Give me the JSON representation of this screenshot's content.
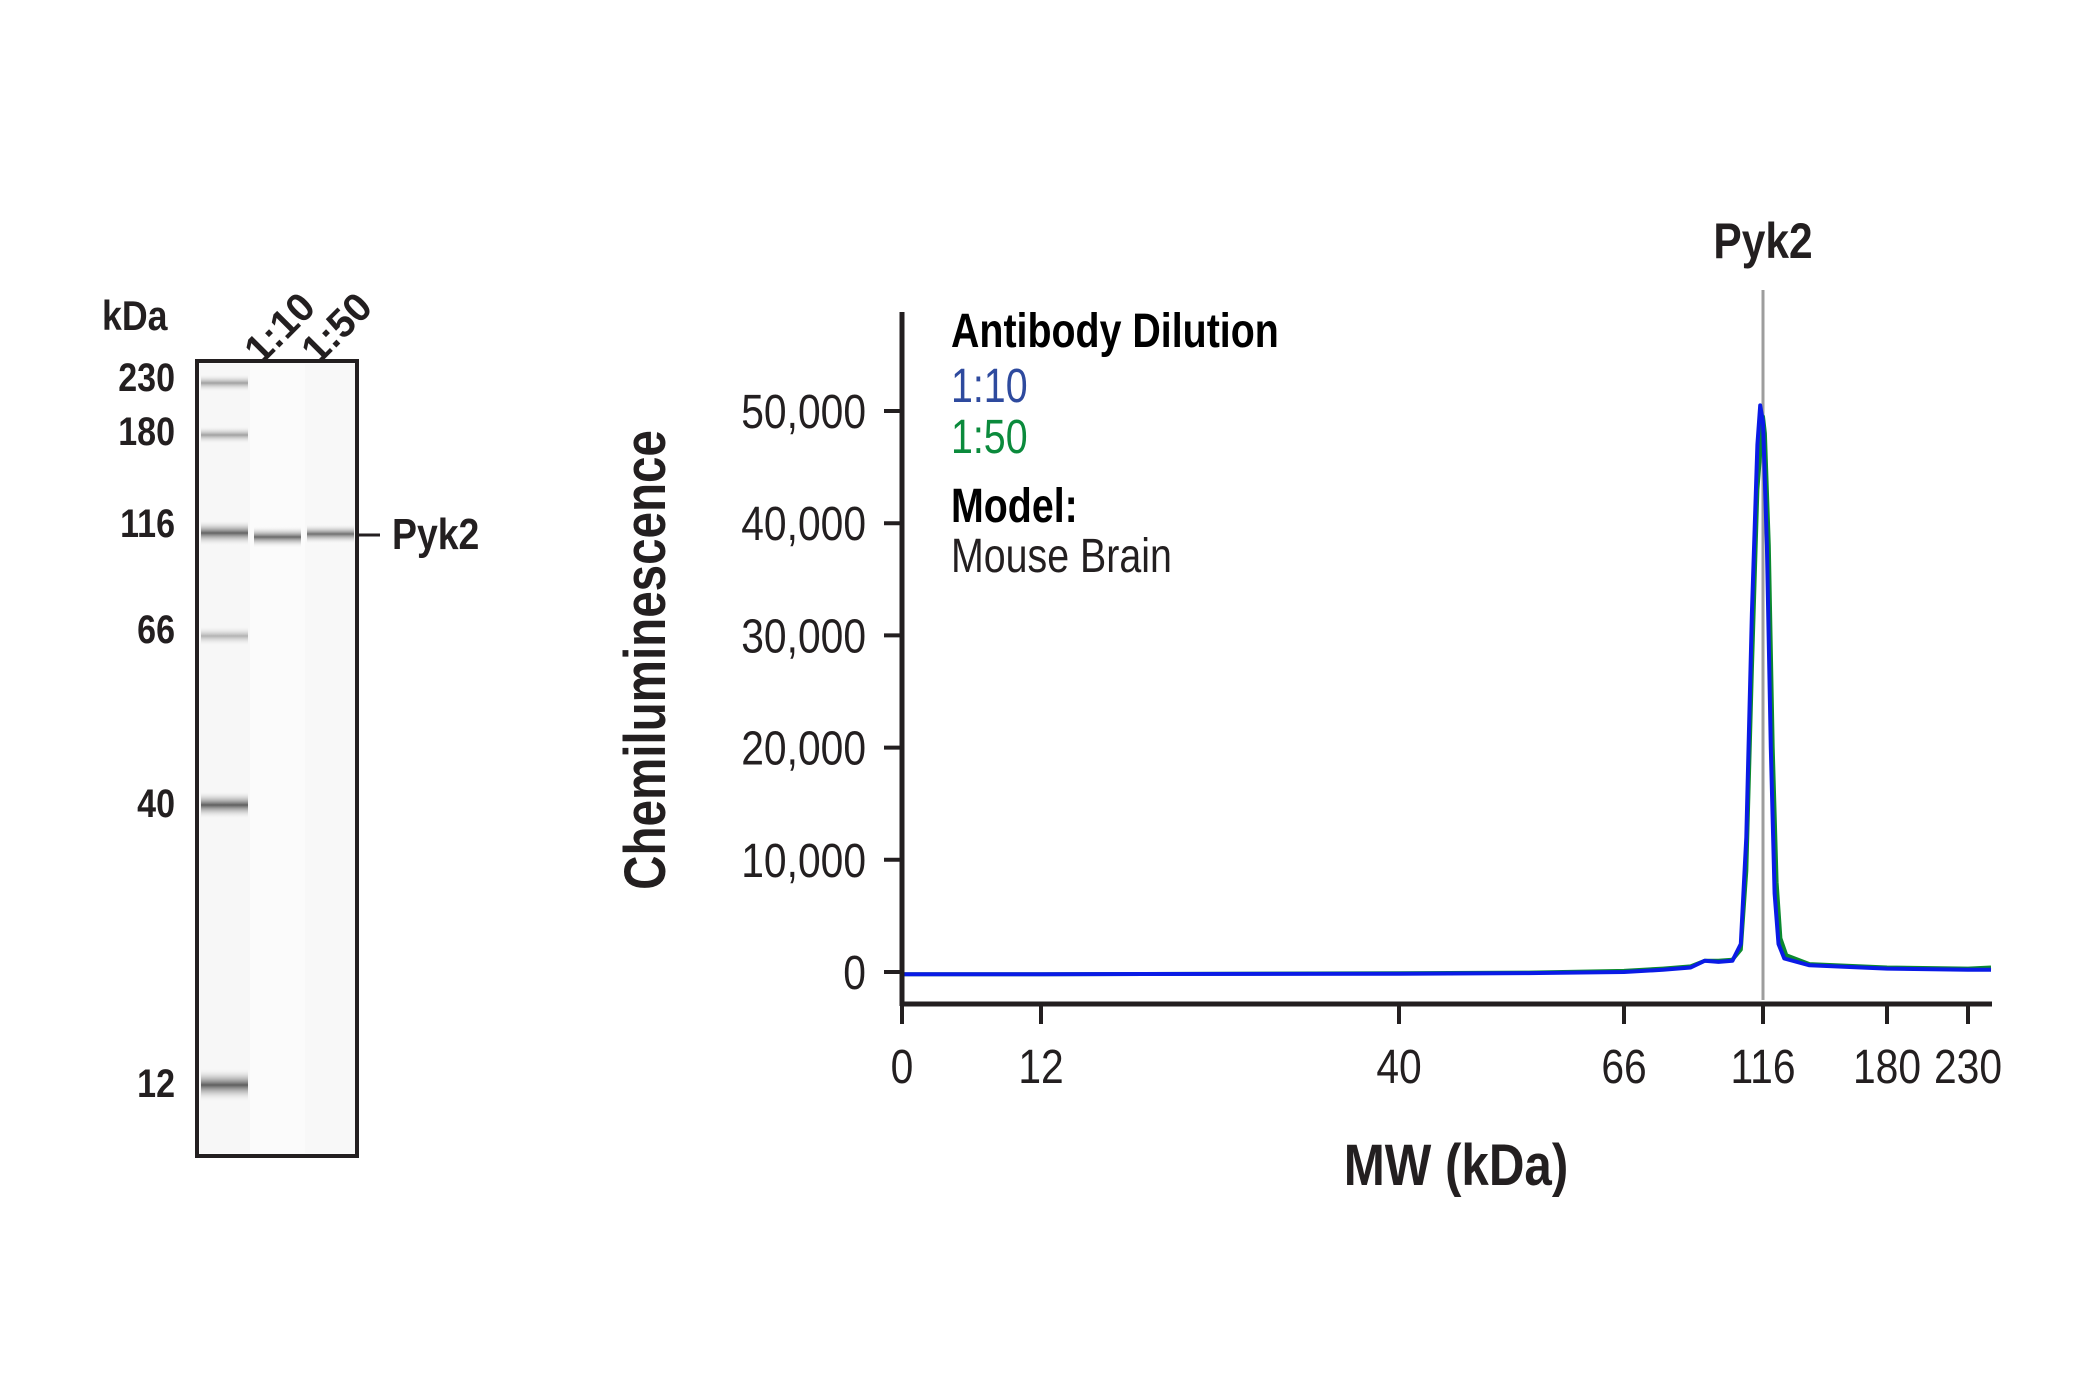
{
  "gel": {
    "unit_label": "kDa",
    "lane_labels": [
      "1:10",
      "1:50"
    ],
    "marker_labels": [
      "230",
      "180",
      "116",
      "66",
      "40",
      "12"
    ],
    "band_label": "Pyk2"
  },
  "chart_data": {
    "type": "line",
    "title": "",
    "xlabel": "MW (kDa)",
    "ylabel": "Chemiluminescence",
    "x_ticks": [
      "0",
      "12",
      "40",
      "66",
      "116",
      "180",
      "230"
    ],
    "y_ticks": [
      "0",
      "10,000",
      "20,000",
      "30,000",
      "40,000",
      "50,000"
    ],
    "ylim": [
      -2000,
      57000
    ],
    "xlim": [
      0,
      250
    ],
    "peak_marker": {
      "label": "Pyk2",
      "x": 116,
      "color": "#9d9d9d"
    },
    "legend": {
      "title": "Antibody Dilution",
      "model_title": "Model:",
      "model_value": "Mouse Brain",
      "placement": "top-left"
    },
    "series": [
      {
        "name": "1:10",
        "color": "#0a1be6",
        "label_color": "#2e4a9e",
        "points": [
          [
            0,
            -200
          ],
          [
            12,
            -200
          ],
          [
            40,
            -150
          ],
          [
            55,
            -100
          ],
          [
            66,
            0
          ],
          [
            80,
            200
          ],
          [
            90,
            400
          ],
          [
            95,
            1000
          ],
          [
            100,
            900
          ],
          [
            105,
            1000
          ],
          [
            108,
            2500
          ],
          [
            110,
            12000
          ],
          [
            112,
            32000
          ],
          [
            114,
            47000
          ],
          [
            115,
            50500
          ],
          [
            116,
            49000
          ],
          [
            118,
            38000
          ],
          [
            120,
            20000
          ],
          [
            122,
            7000
          ],
          [
            124,
            2500
          ],
          [
            127,
            1200
          ],
          [
            140,
            600
          ],
          [
            180,
            300
          ],
          [
            230,
            200
          ],
          [
            250,
            200
          ]
        ]
      },
      {
        "name": "1:50",
        "color": "#0b8a2e",
        "label_color": "#0b8a3c",
        "points": [
          [
            0,
            -200
          ],
          [
            12,
            -200
          ],
          [
            40,
            -120
          ],
          [
            55,
            -50
          ],
          [
            66,
            100
          ],
          [
            80,
            300
          ],
          [
            90,
            500
          ],
          [
            95,
            1000
          ],
          [
            100,
            1000
          ],
          [
            105,
            1100
          ],
          [
            108,
            2000
          ],
          [
            110,
            9000
          ],
          [
            112,
            27000
          ],
          [
            114,
            43000
          ],
          [
            116,
            49500
          ],
          [
            117,
            48000
          ],
          [
            119,
            38000
          ],
          [
            121,
            20000
          ],
          [
            123,
            8000
          ],
          [
            125,
            3000
          ],
          [
            128,
            1500
          ],
          [
            140,
            700
          ],
          [
            180,
            400
          ],
          [
            230,
            300
          ],
          [
            250,
            400
          ]
        ]
      }
    ]
  }
}
